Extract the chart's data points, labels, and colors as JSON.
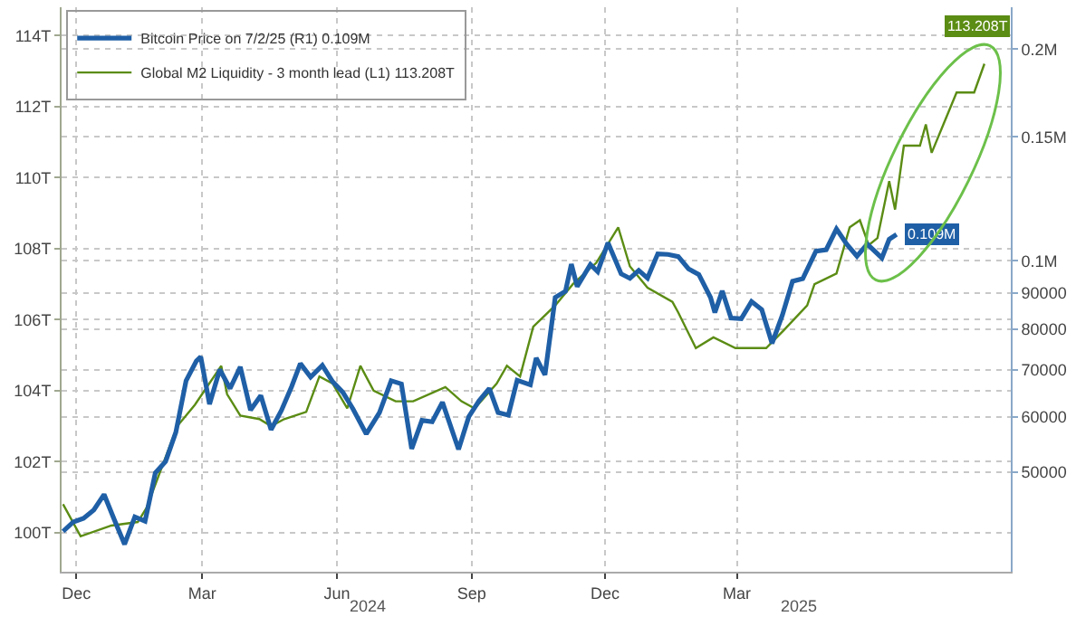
{
  "chart_data": {
    "type": "line",
    "series": [
      {
        "name": "Bitcoin Price on 7/2/25 (R1) 0.109M",
        "color": "#1f5fa6",
        "axis": "y2",
        "x": [
          "2023-12-11",
          "2023-12-18",
          "2023-12-25",
          "2024-01-01",
          "2024-01-08",
          "2024-01-15",
          "2024-01-22",
          "2024-01-29",
          "2024-02-05",
          "2024-02-12",
          "2024-02-19",
          "2024-02-26",
          "2024-03-04",
          "2024-03-11",
          "2024-03-14",
          "2024-03-20",
          "2024-03-27",
          "2024-04-03",
          "2024-04-10",
          "2024-04-17",
          "2024-04-24",
          "2024-05-01",
          "2024-05-08",
          "2024-05-15",
          "2024-05-21",
          "2024-05-28",
          "2024-06-05",
          "2024-06-12",
          "2024-06-19",
          "2024-06-26",
          "2024-07-05",
          "2024-07-14",
          "2024-07-22",
          "2024-07-29",
          "2024-08-05",
          "2024-08-12",
          "2024-08-19",
          "2024-08-26",
          "2024-09-06",
          "2024-09-13",
          "2024-09-20",
          "2024-09-27",
          "2024-10-03",
          "2024-10-10",
          "2024-10-16",
          "2024-10-25",
          "2024-10-29",
          "2024-11-04",
          "2024-11-11",
          "2024-11-18",
          "2024-11-22",
          "2024-11-26",
          "2024-12-05",
          "2024-12-10",
          "2024-12-17",
          "2024-12-26",
          "2025-01-01",
          "2025-01-07",
          "2025-01-13",
          "2025-01-20",
          "2025-01-27",
          "2025-02-03",
          "2025-02-10",
          "2025-02-17",
          "2025-02-25",
          "2025-02-28",
          "2025-03-05",
          "2025-03-11",
          "2025-03-18",
          "2025-03-25",
          "2025-04-01",
          "2025-04-08",
          "2025-04-15",
          "2025-04-22",
          "2025-04-29",
          "2025-05-08",
          "2025-05-15",
          "2025-05-22",
          "2025-05-29",
          "2025-06-05",
          "2025-06-12",
          "2025-06-22",
          "2025-06-27",
          "2025-07-02"
        ],
        "values": [
          41200,
          42500,
          43000,
          44200,
          46500,
          42800,
          39500,
          43200,
          42600,
          49900,
          51800,
          57000,
          67500,
          72000,
          73000,
          62500,
          70000,
          65800,
          70600,
          61300,
          64300,
          57500,
          61200,
          66200,
          71400,
          68300,
          71000,
          67300,
          65000,
          61500,
          56700,
          60800,
          67500,
          66800,
          54000,
          59300,
          59000,
          62900,
          53900,
          60000,
          63200,
          65800,
          60800,
          60300,
          67600,
          66600,
          72700,
          68800,
          88700,
          90500,
          98900,
          91900,
          98800,
          96500,
          106100,
          95800,
          94400,
          96900,
          94500,
          102300,
          102100,
          101400,
          97400,
          95600,
          88700,
          84400,
          90600,
          82900,
          82700,
          87500,
          85200,
          76300,
          83600,
          93500,
          94300,
          103200,
          103700,
          111000,
          105600,
          101500,
          105600,
          100900,
          107300,
          109000
        ],
        "value_labels": [
          null,
          null,
          null,
          null,
          null,
          null,
          null,
          null,
          null,
          null,
          null,
          null,
          null,
          null,
          null,
          null,
          null,
          null,
          null,
          null,
          null,
          null,
          null,
          null,
          null,
          null,
          null,
          null,
          null,
          null,
          null,
          null,
          null,
          null,
          null,
          null,
          null,
          null,
          null,
          null,
          null,
          null,
          null,
          null,
          null,
          null,
          null,
          null,
          null,
          null,
          null,
          null,
          null,
          null,
          null,
          null,
          null,
          null,
          null,
          null,
          null,
          null,
          null,
          null,
          null,
          null,
          null,
          null,
          null,
          null,
          null,
          null,
          null,
          null,
          null,
          null,
          null,
          null,
          null,
          null,
          null,
          null,
          null,
          "0.109M"
        ]
      },
      {
        "name": "Global M2 Liquidity - 3 month lead (L1) 113.208T",
        "color": "#5b8c14",
        "x": [
          "2023-12-11",
          "2023-12-23",
          "2024-01-13",
          "2024-01-31",
          "2024-02-06",
          "2024-02-27",
          "2024-03-10",
          "2024-03-28",
          "2024-04-01",
          "2024-04-10",
          "2024-04-23",
          "2024-05-01",
          "2024-05-10",
          "2024-05-25",
          "2024-06-03",
          "2024-06-12",
          "2024-06-22",
          "2024-07-01",
          "2024-07-10",
          "2024-07-25",
          "2024-08-06",
          "2024-08-28",
          "2024-09-08",
          "2024-09-17",
          "2024-10-02",
          "2024-10-09",
          "2024-10-18",
          "2024-10-27",
          "2024-11-11",
          "2024-11-23",
          "2024-12-09",
          "2024-12-24",
          "2025-01-01",
          "2025-01-13",
          "2025-01-30",
          "2025-02-03",
          "2025-02-15",
          "2025-02-27",
          "2025-03-14",
          "2025-04-04",
          "2025-04-16",
          "2025-05-02",
          "2025-05-07",
          "2025-05-22",
          "2025-05-31",
          "2025-06-07",
          "2025-06-13",
          "2025-06-19",
          "2025-06-27",
          "2025-07-01",
          "2025-07-07",
          "2025-07-18",
          "2025-07-22",
          "2025-07-26",
          "2025-08-03",
          "2025-08-12",
          "2025-08-24",
          "2025-08-31"
        ],
        "values": [
          100.8,
          99.9,
          100.2,
          100.3,
          100.7,
          103.0,
          103.6,
          104.7,
          103.9,
          103.3,
          103.2,
          103.0,
          103.2,
          103.4,
          104.4,
          104.2,
          103.5,
          104.7,
          104.0,
          103.7,
          103.7,
          104.1,
          103.7,
          103.5,
          104.2,
          104.7,
          104.4,
          105.8,
          106.4,
          107.0,
          107.6,
          108.6,
          107.5,
          106.9,
          106.5,
          106.2,
          105.2,
          105.5,
          105.2,
          105.2,
          105.7,
          106.4,
          107.0,
          107.3,
          108.6,
          108.8,
          108.1,
          108.3,
          109.9,
          109.1,
          110.9,
          110.9,
          111.5,
          110.7,
          111.5,
          112.4,
          112.4,
          113.208
        ],
        "value_labels": [
          null,
          null,
          null,
          null,
          null,
          null,
          null,
          null,
          null,
          null,
          null,
          null,
          null,
          null,
          null,
          null,
          null,
          null,
          null,
          null,
          null,
          null,
          null,
          null,
          null,
          null,
          null,
          null,
          null,
          null,
          null,
          null,
          null,
          null,
          null,
          null,
          null,
          null,
          null,
          null,
          null,
          null,
          null,
          null,
          null,
          null,
          null,
          null,
          null,
          null,
          null,
          null,
          null,
          null,
          null,
          null,
          null,
          "113.208T"
        ]
      }
    ],
    "xlim": [
      "2023-12-10",
      "2025-09-18"
    ],
    "xticks": [
      {
        "value": "2023-12-20",
        "label": "Dec"
      },
      {
        "value": "2024-03-15",
        "label": "Mar"
      },
      {
        "value": "2024-06-15",
        "label": "Jun"
      },
      {
        "value": "2024-09-15",
        "label": "Sep"
      },
      {
        "value": "2024-12-15",
        "label": "Dec"
      },
      {
        "value": "2025-03-15",
        "label": "Mar"
      }
    ],
    "ylim": [
      98.9,
      114.8
    ],
    "yticks": [
      {
        "value": 100,
        "label": "100T"
      },
      {
        "value": 102,
        "label": "102T"
      },
      {
        "value": 104,
        "label": "104T"
      },
      {
        "value": 106,
        "label": "106T"
      },
      {
        "value": 108,
        "label": "108T"
      },
      {
        "value": 110,
        "label": "110T"
      },
      {
        "value": 112,
        "label": "112T"
      },
      {
        "value": 114,
        "label": "114T"
      }
    ],
    "y2lim": [
      36100,
      229500
    ],
    "y2ticks": [
      50000,
      60000,
      70000,
      80000,
      90000,
      {
        "value": 100000,
        "label": "0.1M"
      },
      {
        "value": 150000,
        "label": "0.15M"
      },
      {
        "value": 200000,
        "label": "0.2M"
      }
    ],
    "log": "y2",
    "grid": true,
    "legend": "top left",
    "annotations": [
      "2024",
      "2025"
    ]
  }
}
